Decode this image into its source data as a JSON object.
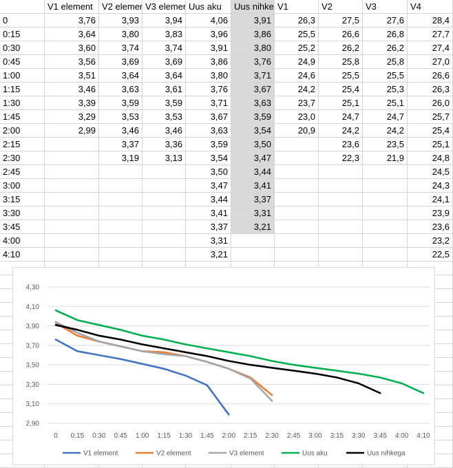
{
  "sheet": {
    "columns": [
      {
        "header": ""
      },
      {
        "header": "V1 element"
      },
      {
        "header": "V2 element"
      },
      {
        "header": "V3 element"
      },
      {
        "header": "Uus aku"
      },
      {
        "header": "Uus nihkega"
      },
      {
        "header": "V1"
      },
      {
        "header": "V2"
      },
      {
        "header": "V3"
      },
      {
        "header": "V4"
      }
    ],
    "rows": [
      [
        "0",
        "3,76",
        "3,93",
        "3,94",
        "4,06",
        "3,91",
        "26,3",
        "27,5",
        "27,6",
        "28,4"
      ],
      [
        "0:15",
        "3,64",
        "3,80",
        "3,83",
        "3,96",
        "3,86",
        "25,5",
        "26,6",
        "26,8",
        "27,7"
      ],
      [
        "0:30",
        "3,60",
        "3,74",
        "3,74",
        "3,91",
        "3,80",
        "25,2",
        "26,2",
        "26,2",
        "27,4"
      ],
      [
        "0:45",
        "3,56",
        "3,69",
        "3,69",
        "3,86",
        "3,76",
        "24,9",
        "25,8",
        "25,8",
        "27,0"
      ],
      [
        "1:00",
        "3,51",
        "3,64",
        "3,64",
        "3,80",
        "3,71",
        "24,6",
        "25,5",
        "25,5",
        "26,6"
      ],
      [
        "1:15",
        "3,46",
        "3,63",
        "3,61",
        "3,76",
        "3,67",
        "24,2",
        "25,4",
        "25,3",
        "26,3"
      ],
      [
        "1:30",
        "3,39",
        "3,59",
        "3,59",
        "3,71",
        "3,63",
        "23,7",
        "25,1",
        "25,1",
        "26,0"
      ],
      [
        "1:45",
        "3,29",
        "3,53",
        "3,53",
        "3,67",
        "3,59",
        "23,0",
        "24,7",
        "24,7",
        "25,7"
      ],
      [
        "2:00",
        "2,99",
        "3,46",
        "3,46",
        "3,63",
        "3,54",
        "20,9",
        "24,2",
        "24,2",
        "25,4"
      ],
      [
        "2:15",
        "",
        "3,37",
        "3,36",
        "3,59",
        "3,50",
        "",
        "23,6",
        "23,5",
        "25,1"
      ],
      [
        "2:30",
        "",
        "3,19",
        "3,13",
        "3,54",
        "3,47",
        "",
        "22,3",
        "21,9",
        "24,8"
      ],
      [
        "2:45",
        "",
        "",
        "",
        "3,50",
        "3,44",
        "",
        "",
        "",
        "24,5"
      ],
      [
        "3:00",
        "",
        "",
        "",
        "3,47",
        "3,41",
        "",
        "",
        "",
        "24,3"
      ],
      [
        "3:15",
        "",
        "",
        "",
        "3,44",
        "3,37",
        "",
        "",
        "",
        "24,1"
      ],
      [
        "3:30",
        "",
        "",
        "",
        "3,41",
        "3,31",
        "",
        "",
        "",
        "23,9"
      ],
      [
        "3:45",
        "",
        "",
        "",
        "3,37",
        "3,21",
        "",
        "",
        "",
        "23,6"
      ],
      [
        "4:00",
        "",
        "",
        "",
        "3,31",
        "",
        "",
        "",
        "",
        "23,2"
      ],
      [
        "4:10",
        "",
        "",
        "",
        "3,21",
        "",
        "",
        "",
        "",
        "22,5"
      ]
    ]
  },
  "chart_data": {
    "type": "line",
    "title": "",
    "xlabel": "",
    "ylabel": "",
    "categories": [
      "0",
      "0:15",
      "0:30",
      "0:45",
      "1:00",
      "1:15",
      "1:30",
      "1:45",
      "2:00",
      "2:15",
      "2:30",
      "2:45",
      "3:00",
      "3:15",
      "3:30",
      "3:45",
      "4:00",
      "4:10"
    ],
    "y_ticks": [
      "2,90",
      "3,10",
      "3,30",
      "3,50",
      "3,70",
      "3,90",
      "4,10",
      "4,30"
    ],
    "ylim": [
      2.9,
      4.3
    ],
    "grid": true,
    "legend_position": "bottom",
    "series": [
      {
        "name": "V1 element",
        "color": "#4472C4",
        "values": [
          3.76,
          3.64,
          3.6,
          3.56,
          3.51,
          3.46,
          3.39,
          3.29,
          2.99,
          null,
          null,
          null,
          null,
          null,
          null,
          null,
          null,
          null
        ]
      },
      {
        "name": "V2 element",
        "color": "#ED7D31",
        "values": [
          3.93,
          3.8,
          3.74,
          3.69,
          3.64,
          3.63,
          3.59,
          3.53,
          3.46,
          3.37,
          3.19,
          null,
          null,
          null,
          null,
          null,
          null,
          null
        ]
      },
      {
        "name": "V3 element",
        "color": "#A5A5A5",
        "values": [
          3.94,
          3.83,
          3.74,
          3.69,
          3.64,
          3.61,
          3.59,
          3.53,
          3.46,
          3.36,
          3.13,
          null,
          null,
          null,
          null,
          null,
          null,
          null
        ]
      },
      {
        "name": "Uus aku",
        "color": "#00B050",
        "values": [
          4.06,
          3.96,
          3.91,
          3.86,
          3.8,
          3.76,
          3.71,
          3.67,
          3.63,
          3.59,
          3.54,
          3.5,
          3.47,
          3.44,
          3.41,
          3.37,
          3.31,
          3.21
        ]
      },
      {
        "name": "Uus nihkega",
        "color": "#000000",
        "values": [
          3.91,
          3.86,
          3.8,
          3.76,
          3.71,
          3.67,
          3.63,
          3.59,
          3.54,
          3.5,
          3.47,
          3.44,
          3.41,
          3.37,
          3.31,
          3.21,
          null,
          null
        ]
      }
    ]
  }
}
